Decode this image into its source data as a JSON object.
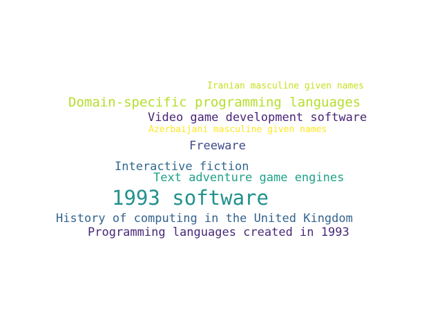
{
  "words": [
    {
      "text": "Iranian masculine given names",
      "color": "#c8e020"
    },
    {
      "text": "Domain-specific programming languages",
      "color": "#b5de2b"
    },
    {
      "text": "Video game development software",
      "color": "#482475"
    },
    {
      "text": "Azerbaijani masculine given names",
      "color": "#fde725"
    },
    {
      "text": "Freeware",
      "color": "#3e4a89"
    },
    {
      "text": "Interactive fiction",
      "color": "#31688e"
    },
    {
      "text": "Text adventure game engines",
      "color": "#1fa187"
    },
    {
      "text": "1993 software",
      "color": "#21918c"
    },
    {
      "text": "History of computing in the United Kingdom",
      "color": "#33638d"
    },
    {
      "text": "Programming languages created in 1993",
      "color": "#482878"
    }
  ]
}
